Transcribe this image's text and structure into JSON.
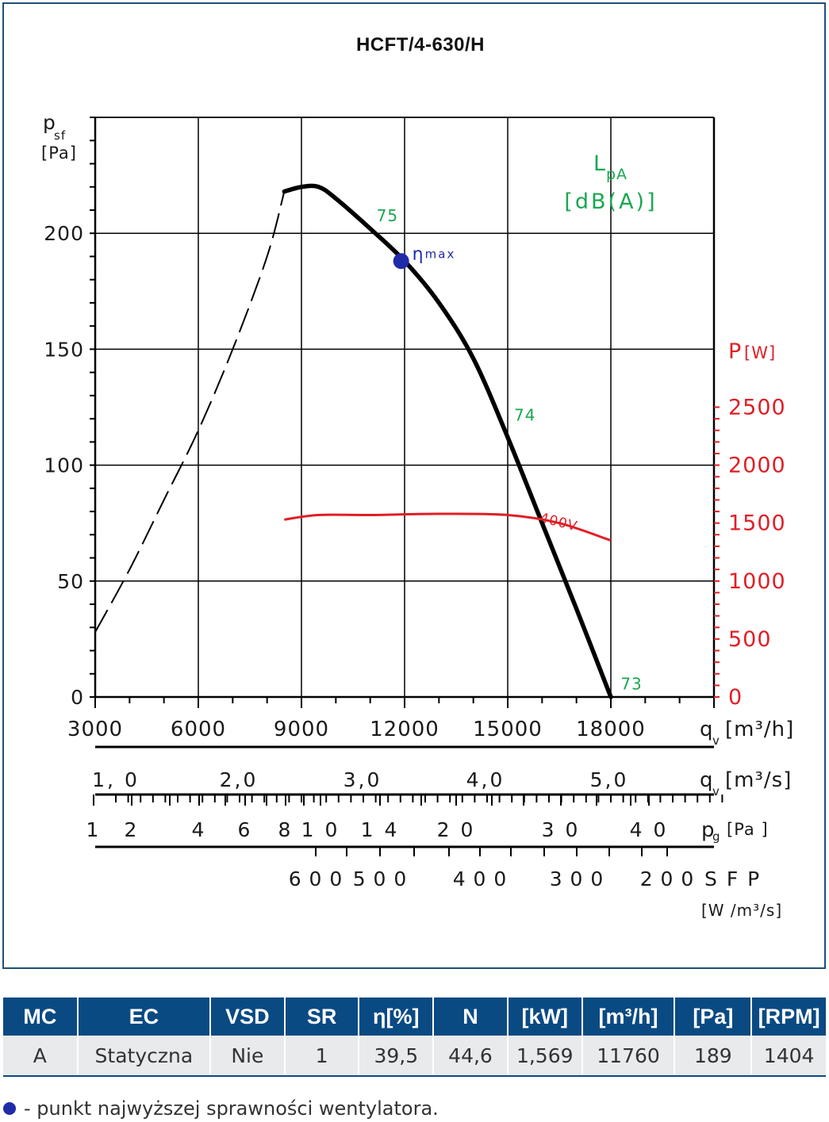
{
  "chart_data": {
    "type": "line",
    "title": "HCFT/4-630/H",
    "y_label_main": "p",
    "y_label_sub": "sf",
    "y_unit": "[Pa]",
    "y_ticks": [
      "0",
      "50",
      "100",
      "150",
      "200"
    ],
    "ylim": [
      0,
      250
    ],
    "x_label": "q",
    "x_label_sub": "v",
    "x_unit": "[m³/h]",
    "x_ticks": [
      "3000",
      "6000",
      "9000",
      "12000",
      "15000",
      "18000"
    ],
    "xlim": [
      3000,
      21000
    ],
    "grid": true,
    "y2_label": "P",
    "y2_unit": "[W]",
    "y2_ticks": [
      "0",
      "500",
      "1000",
      "1500",
      "2000",
      "2500"
    ],
    "y2lim": [
      0,
      2500
    ],
    "noise_label": "L",
    "noise_label_sub": "pA",
    "noise_unit": "[dB(A)]",
    "series": [
      {
        "kind": "pressure-curve-unstable",
        "color": "#000000",
        "points": [
          [
            3000,
            28
          ],
          [
            4000,
            55
          ],
          [
            5000,
            85
          ],
          [
            6000,
            115
          ],
          [
            7000,
            150
          ],
          [
            8000,
            190
          ],
          [
            8500,
            218
          ]
        ]
      },
      {
        "kind": "pressure-curve",
        "color": "#000000",
        "points": [
          [
            8500,
            218
          ],
          [
            9000,
            220
          ],
          [
            9500,
            220
          ],
          [
            10000,
            215
          ],
          [
            11000,
            202
          ],
          [
            12000,
            188
          ],
          [
            13000,
            170
          ],
          [
            14000,
            146
          ],
          [
            15000,
            112
          ],
          [
            16000,
            75
          ],
          [
            17000,
            38
          ],
          [
            18000,
            0
          ]
        ]
      },
      {
        "name": "400V",
        "kind": "power-curve",
        "color": "#e01f26",
        "points": [
          [
            8500,
            1530
          ],
          [
            9500,
            1570
          ],
          [
            11000,
            1570
          ],
          [
            13000,
            1580
          ],
          [
            15000,
            1570
          ],
          [
            16500,
            1500
          ],
          [
            18000,
            1350
          ]
        ]
      }
    ],
    "noise_labels": [
      {
        "text": "75",
        "x": 11000,
        "y": 208
      },
      {
        "text": "74",
        "x": 15000,
        "y": 122
      },
      {
        "text": "73",
        "x": 18100,
        "y": 6
      }
    ],
    "eta_max_point": {
      "x": 11900,
      "y": 188,
      "label": "η",
      "label_sub": "max",
      "color": "#1f2ba8"
    },
    "secondary_axes": [
      {
        "label": "q",
        "label_sub": "v",
        "unit": "[m³/s]",
        "ticks": [
          "1, 0",
          "2,0",
          "3,0",
          "4,0",
          "5,0"
        ]
      },
      {
        "label": "p",
        "label_sub": "g",
        "unit": "[Pa ]",
        "ticks": [
          "1",
          "2",
          "4",
          "6",
          "8",
          "1 0",
          "1 4",
          "2 0",
          "3 0",
          "4 0"
        ]
      },
      {
        "label": "S F P",
        "unit": "[W /m³/s]",
        "ticks": [
          "6 0 0",
          "5 0 0",
          "4 0 0",
          "3 0 0",
          "2 0 0"
        ]
      }
    ]
  },
  "table": {
    "headers": [
      "MC",
      "EC",
      "VSD",
      "SR",
      "η[%]",
      "N",
      "[kW]",
      "[m³/h]",
      "[Pa]",
      "[RPM]"
    ],
    "row": [
      "A",
      "Statyczna",
      "Nie",
      "1",
      "39,5",
      "44,6",
      "1,569",
      "11760",
      "189",
      "1404"
    ]
  },
  "footnote": "- punkt najwyższej sprawności wentylatora.",
  "colors": {
    "frame": "#1f4e79",
    "header_bg": "#0a4a83",
    "noise": "#1aa850",
    "power": "#e01f26",
    "eta": "#1f2ba8"
  }
}
